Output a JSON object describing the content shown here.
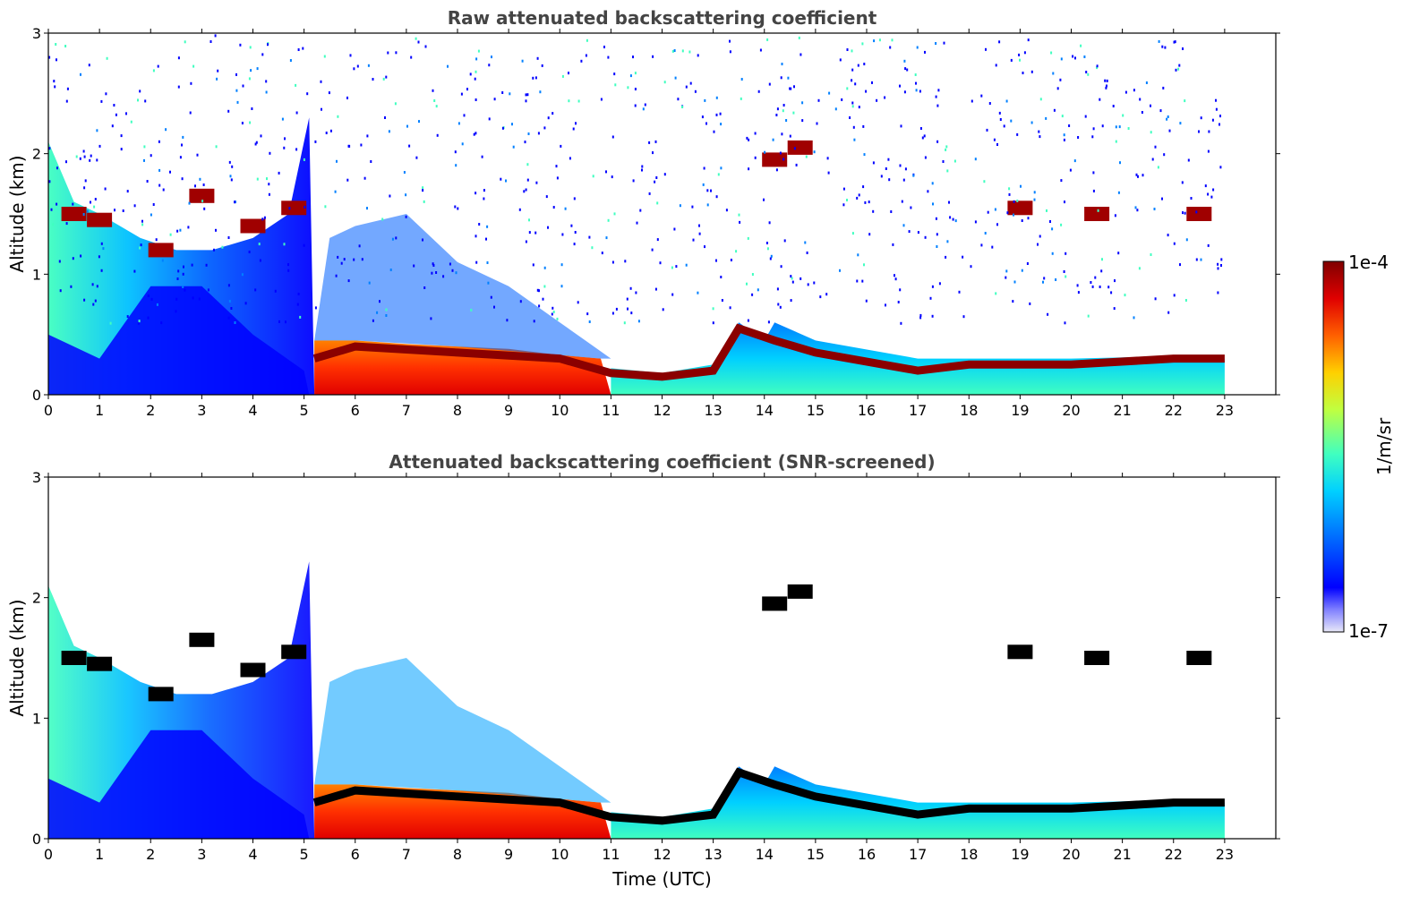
{
  "chart_data": [
    {
      "type": "heatmap",
      "title": "Raw attenuated backscattering coefficient",
      "xlabel": "",
      "ylabel": "Altitude (km)",
      "xlim": [
        0,
        24
      ],
      "ylim": [
        0,
        3
      ],
      "xticks": [
        "0",
        "1",
        "2",
        "3",
        "4",
        "5",
        "6",
        "7",
        "8",
        "9",
        "10",
        "11",
        "12",
        "13",
        "14",
        "15",
        "16",
        "17",
        "18",
        "19",
        "20",
        "21",
        "22",
        "23"
      ],
      "yticks": [
        "0",
        "1",
        "2",
        "3"
      ],
      "data_end_hour": 23,
      "layers": [
        {
          "name": "boundary-layer-top",
          "points": [
            [
              5.2,
              0.3
            ],
            [
              6,
              0.4
            ],
            [
              8,
              0.35
            ],
            [
              10,
              0.3
            ],
            [
              11,
              0.18
            ],
            [
              12,
              0.15
            ],
            [
              13,
              0.2
            ],
            [
              13.5,
              0.55
            ],
            [
              14.2,
              0.45
            ],
            [
              15,
              0.35
            ],
            [
              17,
              0.2
            ],
            [
              18,
              0.25
            ],
            [
              20,
              0.25
            ],
            [
              22,
              0.3
            ],
            [
              23,
              0.3
            ]
          ]
        },
        {
          "name": "cloud-1.5km",
          "points": [
            [
              0.5,
              1.5
            ],
            [
              1,
              1.45
            ],
            [
              2.2,
              1.2
            ],
            [
              3,
              1.65
            ],
            [
              4,
              1.4
            ],
            [
              4.8,
              1.55
            ],
            [
              19,
              1.55
            ],
            [
              20.5,
              1.5
            ],
            [
              22.5,
              1.5
            ]
          ]
        },
        {
          "name": "cloud-2km",
          "points": [
            [
              14.2,
              1.95
            ],
            [
              14.7,
              2.05
            ]
          ]
        }
      ],
      "grid": false
    },
    {
      "type": "heatmap",
      "title": "Attenuated backscattering coefficient (SNR-screened)",
      "xlabel": "Time (UTC)",
      "ylabel": "Altitude (km)",
      "xlim": [
        0,
        24
      ],
      "ylim": [
        0,
        3
      ],
      "xticks": [
        "0",
        "1",
        "2",
        "3",
        "4",
        "5",
        "6",
        "7",
        "8",
        "9",
        "10",
        "11",
        "12",
        "13",
        "14",
        "15",
        "16",
        "17",
        "18",
        "19",
        "20",
        "21",
        "22",
        "23"
      ],
      "yticks": [
        "0",
        "1",
        "2",
        "3"
      ],
      "data_end_hour": 23,
      "grid": false
    }
  ],
  "colorbar": {
    "label": "1/m/sr",
    "max_label": "1e-4",
    "min_label": "1e-7",
    "colormap": [
      "#e8e8f8",
      "#8080ff",
      "#0000ff",
      "#0080ff",
      "#00d0ff",
      "#40ffc0",
      "#c0ff40",
      "#ffd000",
      "#ff6000",
      "#e00000",
      "#800000"
    ]
  }
}
